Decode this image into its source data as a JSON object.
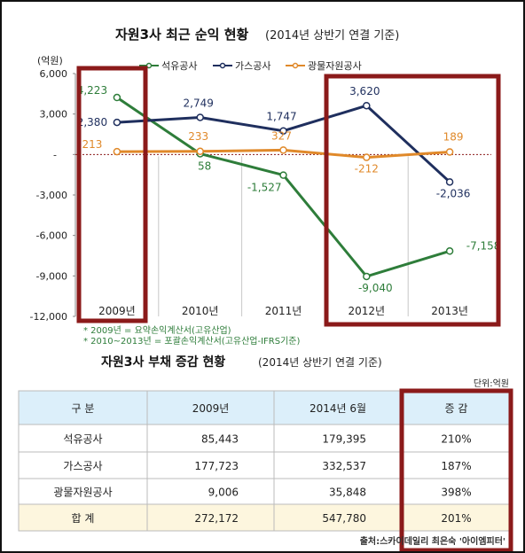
{
  "chart1": {
    "title": "자원3사 최근 순익 현황",
    "subtitle": "(2014년 상반기 연결 기준)",
    "unit": "(억원)",
    "footnotes": [
      "* 2009년 = 요약손익계산서(고유산업)",
      "* 2010~2013년 = 포괄손익계산서(고유산업-IFRS기준)"
    ]
  },
  "chart_data": {
    "type": "line",
    "categories": [
      "2009년",
      "2010년",
      "2011년",
      "2012년",
      "2013년"
    ],
    "series": [
      {
        "name": "석유공사",
        "color": "#2e7d3a",
        "values": [
          4223,
          58,
          -1527,
          -9040,
          -7158
        ],
        "labels": [
          "4,223",
          "58",
          "-1,527",
          "-9,040",
          "-7,158"
        ]
      },
      {
        "name": "가스공사",
        "color": "#1f2f5e",
        "values": [
          2380,
          2749,
          1747,
          3620,
          -2036
        ],
        "labels": [
          "2,380",
          "2,749",
          "1,747",
          "3,620",
          "-2,036"
        ]
      },
      {
        "name": "광물자원공사",
        "color": "#e0892a",
        "values": [
          213,
          233,
          327,
          -212,
          189
        ],
        "labels": [
          "213",
          "233",
          "327",
          "-212",
          "189"
        ]
      }
    ],
    "yticks": [
      "6,000",
      "3,000",
      "-",
      "-3,000",
      "-6,000",
      "-9,000",
      "-12,000"
    ],
    "ylim": [
      -12000,
      6000
    ],
    "grid": false,
    "legend": "top"
  },
  "table1": {
    "title": "자원3사 부채 증감 현황",
    "subtitle": "(2014년 상반기 연결 기준)",
    "unit": "단위:억원",
    "headers": [
      "구  분",
      "2009년",
      "2014년 6월",
      "증  감"
    ],
    "rows": [
      [
        "석유공사",
        "85,443",
        "179,395",
        "210%"
      ],
      [
        "가스공사",
        "177,723",
        "332,537",
        "187%"
      ],
      [
        "광물자원공사",
        "9,006",
        "35,848",
        "398%"
      ],
      [
        "합    계",
        "272,172",
        "547,780",
        "201%"
      ]
    ]
  },
  "source": "출처:스카이데일리 최은숙 '아이엠피터'",
  "colors": {
    "highlight_box": "#8b1a1a",
    "table_header": "#dceffa",
    "table_total": "#fdf6de",
    "grid_line": "#c8c8c8"
  }
}
